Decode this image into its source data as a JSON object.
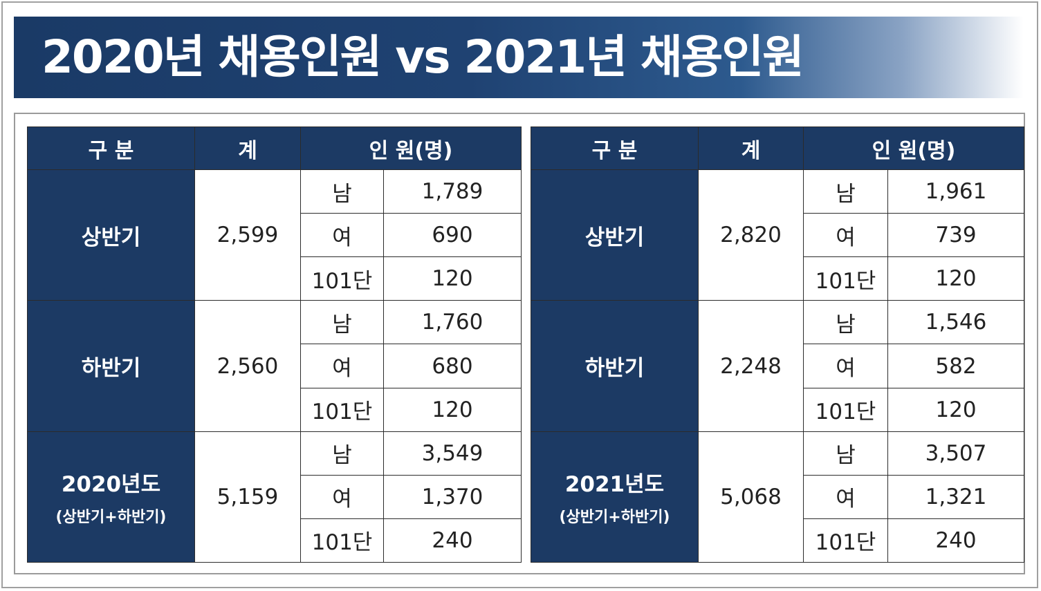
{
  "title": "2020년 채용인원 vs 2021년 채용인원",
  "headers": {
    "division": "구  분",
    "total": "계",
    "persons": "인  원(명)"
  },
  "tables": [
    {
      "groups": [
        {
          "label": "상반기",
          "sublabel": "",
          "total": "2,599",
          "rows": [
            {
              "cat": "남",
              "val": "1,789"
            },
            {
              "cat": "여",
              "val": "690"
            },
            {
              "cat": "101단",
              "val": "120"
            }
          ]
        },
        {
          "label": "하반기",
          "sublabel": "",
          "total": "2,560",
          "rows": [
            {
              "cat": "남",
              "val": "1,760"
            },
            {
              "cat": "여",
              "val": "680"
            },
            {
              "cat": "101단",
              "val": "120"
            }
          ]
        },
        {
          "label": "2020년도",
          "sublabel": "(상반기+하반기)",
          "total": "5,159",
          "rows": [
            {
              "cat": "남",
              "val": "3,549"
            },
            {
              "cat": "여",
              "val": "1,370"
            },
            {
              "cat": "101단",
              "val": "240"
            }
          ]
        }
      ]
    },
    {
      "groups": [
        {
          "label": "상반기",
          "sublabel": "",
          "total": "2,820",
          "rows": [
            {
              "cat": "남",
              "val": "1,961"
            },
            {
              "cat": "여",
              "val": "739"
            },
            {
              "cat": "101단",
              "val": "120"
            }
          ]
        },
        {
          "label": "하반기",
          "sublabel": "",
          "total": "2,248",
          "rows": [
            {
              "cat": "남",
              "val": "1,546"
            },
            {
              "cat": "여",
              "val": "582"
            },
            {
              "cat": "101단",
              "val": "120"
            }
          ]
        },
        {
          "label": "2021년도",
          "sublabel": "(상반기+하반기)",
          "total": "5,068",
          "rows": [
            {
              "cat": "남",
              "val": "3,507"
            },
            {
              "cat": "여",
              "val": "1,321"
            },
            {
              "cat": "101단",
              "val": "240"
            }
          ]
        }
      ]
    }
  ]
}
